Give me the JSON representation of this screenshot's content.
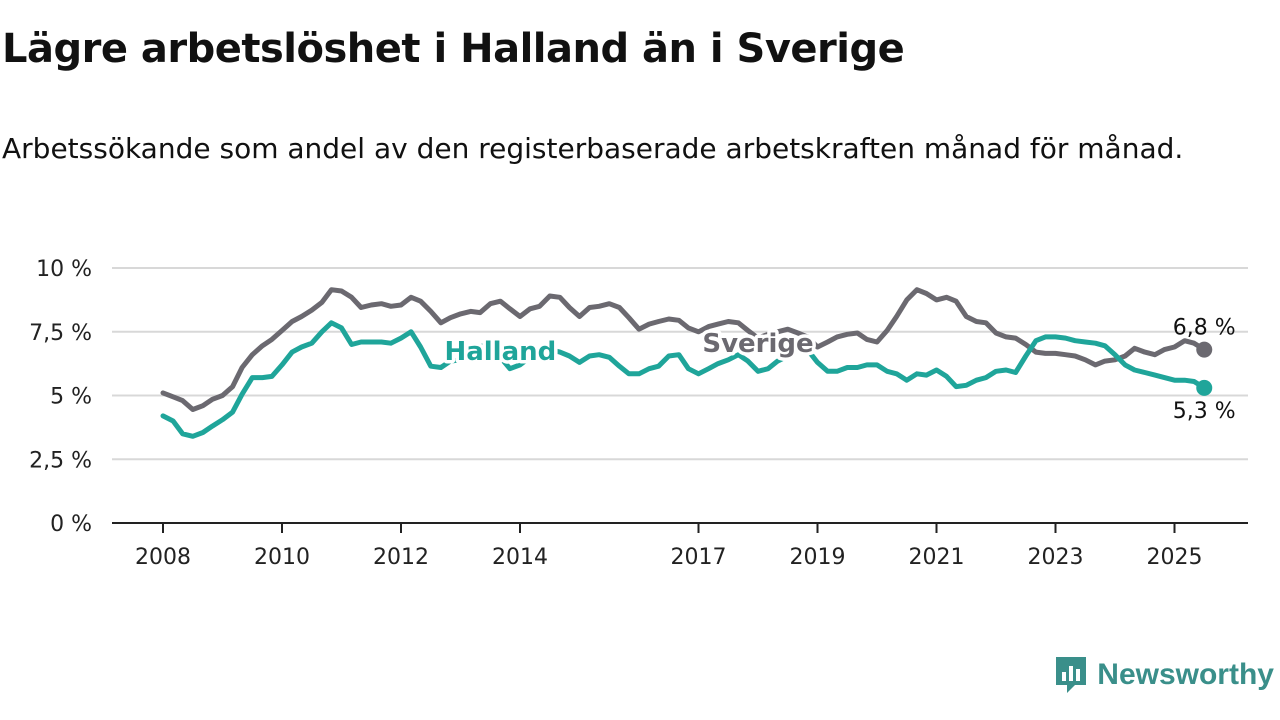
{
  "brand": {
    "name": "Newsworthy",
    "icon": "newsworthy-logo-icon",
    "color": "#3a8f8a"
  },
  "chart_data": {
    "type": "line",
    "title": "Lägre arbetslöshet i Halland än i Sverige",
    "subtitle": "Arbetssökande som andel av den registerbaserade arbetskraften månad för månad.",
    "xlabel": "",
    "ylabel": "",
    "xlim": [
      2007.5,
      2026.25
    ],
    "ylim": [
      0,
      10
    ],
    "x_ticks": [
      2008,
      2010,
      2012,
      2014,
      2017,
      2019,
      2021,
      2023,
      2025
    ],
    "x_tick_labels": [
      "2008",
      "2010",
      "2012",
      "2014",
      "2017",
      "2019",
      "2021",
      "2023",
      "2025"
    ],
    "y_ticks": [
      0,
      2.5,
      5,
      7.5,
      10
    ],
    "y_tick_labels": [
      "0 %",
      "2,5 %",
      "5 %",
      "7,5 %",
      "10 %"
    ],
    "grid": "horizontal",
    "legend": "inline labels on lines",
    "series": [
      {
        "name": "Sverige",
        "color": "#6b6970",
        "label_at": [
          2018.0,
          7.05
        ],
        "end_label": "6,8 %",
        "points": [
          [
            2008.0,
            5.1
          ],
          [
            2008.17,
            4.95
          ],
          [
            2008.33,
            4.8
          ],
          [
            2008.5,
            4.45
          ],
          [
            2008.67,
            4.6
          ],
          [
            2008.83,
            4.85
          ],
          [
            2009.0,
            5.0
          ],
          [
            2009.17,
            5.35
          ],
          [
            2009.33,
            6.1
          ],
          [
            2009.5,
            6.6
          ],
          [
            2009.67,
            6.95
          ],
          [
            2009.83,
            7.2
          ],
          [
            2010.0,
            7.55
          ],
          [
            2010.17,
            7.9
          ],
          [
            2010.33,
            8.1
          ],
          [
            2010.5,
            8.35
          ],
          [
            2010.67,
            8.65
          ],
          [
            2010.83,
            9.15
          ],
          [
            2011.0,
            9.1
          ],
          [
            2011.17,
            8.85
          ],
          [
            2011.33,
            8.45
          ],
          [
            2011.5,
            8.55
          ],
          [
            2011.67,
            8.6
          ],
          [
            2011.83,
            8.5
          ],
          [
            2012.0,
            8.55
          ],
          [
            2012.17,
            8.85
          ],
          [
            2012.33,
            8.7
          ],
          [
            2012.5,
            8.3
          ],
          [
            2012.67,
            7.85
          ],
          [
            2012.83,
            8.05
          ],
          [
            2013.0,
            8.2
          ],
          [
            2013.17,
            8.3
          ],
          [
            2013.33,
            8.25
          ],
          [
            2013.5,
            8.6
          ],
          [
            2013.67,
            8.7
          ],
          [
            2013.83,
            8.4
          ],
          [
            2014.0,
            8.1
          ],
          [
            2014.17,
            8.4
          ],
          [
            2014.33,
            8.5
          ],
          [
            2014.5,
            8.9
          ],
          [
            2014.67,
            8.85
          ],
          [
            2014.83,
            8.45
          ],
          [
            2015.0,
            8.1
          ],
          [
            2015.17,
            8.45
          ],
          [
            2015.33,
            8.5
          ],
          [
            2015.5,
            8.6
          ],
          [
            2015.67,
            8.45
          ],
          [
            2015.83,
            8.05
          ],
          [
            2016.0,
            7.6
          ],
          [
            2016.17,
            7.8
          ],
          [
            2016.33,
            7.9
          ],
          [
            2016.5,
            8.0
          ],
          [
            2016.67,
            7.95
          ],
          [
            2016.83,
            7.65
          ],
          [
            2017.0,
            7.5
          ],
          [
            2017.17,
            7.7
          ],
          [
            2017.33,
            7.8
          ],
          [
            2017.5,
            7.9
          ],
          [
            2017.67,
            7.85
          ],
          [
            2017.83,
            7.55
          ],
          [
            2018.0,
            7.25
          ],
          [
            2018.17,
            7.4
          ],
          [
            2018.33,
            7.5
          ],
          [
            2018.5,
            7.6
          ],
          [
            2018.67,
            7.45
          ],
          [
            2018.83,
            7.3
          ],
          [
            2019.0,
            6.9
          ],
          [
            2019.17,
            7.1
          ],
          [
            2019.33,
            7.3
          ],
          [
            2019.5,
            7.4
          ],
          [
            2019.67,
            7.45
          ],
          [
            2019.83,
            7.2
          ],
          [
            2020.0,
            7.1
          ],
          [
            2020.17,
            7.55
          ],
          [
            2020.33,
            8.1
          ],
          [
            2020.5,
            8.75
          ],
          [
            2020.67,
            9.15
          ],
          [
            2020.83,
            9.0
          ],
          [
            2021.0,
            8.75
          ],
          [
            2021.17,
            8.85
          ],
          [
            2021.33,
            8.7
          ],
          [
            2021.5,
            8.1
          ],
          [
            2021.67,
            7.9
          ],
          [
            2021.83,
            7.85
          ],
          [
            2022.0,
            7.45
          ],
          [
            2022.17,
            7.3
          ],
          [
            2022.33,
            7.25
          ],
          [
            2022.5,
            7.0
          ],
          [
            2022.67,
            6.7
          ],
          [
            2022.83,
            6.65
          ],
          [
            2023.0,
            6.65
          ],
          [
            2023.17,
            6.6
          ],
          [
            2023.33,
            6.55
          ],
          [
            2023.5,
            6.4
          ],
          [
            2023.67,
            6.2
          ],
          [
            2023.83,
            6.35
          ],
          [
            2024.0,
            6.4
          ],
          [
            2024.17,
            6.55
          ],
          [
            2024.33,
            6.85
          ],
          [
            2024.5,
            6.7
          ],
          [
            2024.67,
            6.6
          ],
          [
            2024.83,
            6.8
          ],
          [
            2025.0,
            6.9
          ],
          [
            2025.17,
            7.15
          ],
          [
            2025.33,
            7.05
          ],
          [
            2025.5,
            6.8
          ]
        ]
      },
      {
        "name": "Halland",
        "color": "#1fa59a",
        "label_at": [
          2013.67,
          6.75
        ],
        "end_label": "5,3 %",
        "points": [
          [
            2008.0,
            4.2
          ],
          [
            2008.17,
            4.0
          ],
          [
            2008.33,
            3.5
          ],
          [
            2008.5,
            3.4
          ],
          [
            2008.67,
            3.55
          ],
          [
            2008.83,
            3.8
          ],
          [
            2009.0,
            4.05
          ],
          [
            2009.17,
            4.35
          ],
          [
            2009.33,
            5.05
          ],
          [
            2009.5,
            5.7
          ],
          [
            2009.67,
            5.7
          ],
          [
            2009.83,
            5.75
          ],
          [
            2010.0,
            6.2
          ],
          [
            2010.17,
            6.7
          ],
          [
            2010.33,
            6.9
          ],
          [
            2010.5,
            7.05
          ],
          [
            2010.67,
            7.5
          ],
          [
            2010.83,
            7.85
          ],
          [
            2011.0,
            7.65
          ],
          [
            2011.17,
            7.0
          ],
          [
            2011.33,
            7.1
          ],
          [
            2011.5,
            7.1
          ],
          [
            2011.67,
            7.1
          ],
          [
            2011.83,
            7.05
          ],
          [
            2012.0,
            7.25
          ],
          [
            2012.17,
            7.5
          ],
          [
            2012.33,
            6.9
          ],
          [
            2012.5,
            6.15
          ],
          [
            2012.67,
            6.1
          ],
          [
            2012.83,
            6.35
          ],
          [
            2013.0,
            6.4
          ],
          [
            2013.17,
            6.45
          ],
          [
            2013.33,
            6.9
          ],
          [
            2013.5,
            7.05
          ],
          [
            2013.67,
            6.5
          ],
          [
            2013.83,
            6.05
          ],
          [
            2014.0,
            6.2
          ],
          [
            2014.17,
            6.5
          ],
          [
            2014.33,
            6.65
          ],
          [
            2014.5,
            6.8
          ],
          [
            2014.67,
            6.7
          ],
          [
            2014.83,
            6.55
          ],
          [
            2015.0,
            6.3
          ],
          [
            2015.17,
            6.55
          ],
          [
            2015.33,
            6.6
          ],
          [
            2015.5,
            6.5
          ],
          [
            2015.67,
            6.15
          ],
          [
            2015.83,
            5.85
          ],
          [
            2016.0,
            5.85
          ],
          [
            2016.17,
            6.05
          ],
          [
            2016.33,
            6.15
          ],
          [
            2016.5,
            6.55
          ],
          [
            2016.67,
            6.6
          ],
          [
            2016.83,
            6.05
          ],
          [
            2017.0,
            5.85
          ],
          [
            2017.17,
            6.05
          ],
          [
            2017.33,
            6.25
          ],
          [
            2017.5,
            6.4
          ],
          [
            2017.67,
            6.6
          ],
          [
            2017.83,
            6.35
          ],
          [
            2018.0,
            5.95
          ],
          [
            2018.17,
            6.05
          ],
          [
            2018.33,
            6.35
          ],
          [
            2018.5,
            6.55
          ],
          [
            2018.67,
            6.8
          ],
          [
            2018.83,
            6.8
          ],
          [
            2019.0,
            6.3
          ],
          [
            2019.17,
            5.95
          ],
          [
            2019.33,
            5.95
          ],
          [
            2019.5,
            6.1
          ],
          [
            2019.67,
            6.1
          ],
          [
            2019.83,
            6.2
          ],
          [
            2020.0,
            6.2
          ],
          [
            2020.17,
            5.95
          ],
          [
            2020.33,
            5.85
          ],
          [
            2020.5,
            5.6
          ],
          [
            2020.67,
            5.85
          ],
          [
            2020.83,
            5.8
          ],
          [
            2021.0,
            6.0
          ],
          [
            2021.17,
            5.75
          ],
          [
            2021.33,
            5.35
          ],
          [
            2021.5,
            5.4
          ],
          [
            2021.67,
            5.6
          ],
          [
            2021.83,
            5.7
          ],
          [
            2022.0,
            5.95
          ],
          [
            2022.17,
            6.0
          ],
          [
            2022.33,
            5.9
          ],
          [
            2022.5,
            6.55
          ],
          [
            2022.67,
            7.15
          ],
          [
            2022.83,
            7.3
          ],
          [
            2023.0,
            7.3
          ],
          [
            2023.17,
            7.25
          ],
          [
            2023.33,
            7.15
          ],
          [
            2023.5,
            7.1
          ],
          [
            2023.67,
            7.05
          ],
          [
            2023.83,
            6.95
          ],
          [
            2024.0,
            6.6
          ],
          [
            2024.17,
            6.2
          ],
          [
            2024.33,
            6.0
          ],
          [
            2024.5,
            5.9
          ],
          [
            2024.67,
            5.8
          ],
          [
            2024.83,
            5.7
          ],
          [
            2025.0,
            5.6
          ],
          [
            2025.17,
            5.6
          ],
          [
            2025.33,
            5.55
          ],
          [
            2025.5,
            5.3
          ]
        ]
      }
    ]
  }
}
